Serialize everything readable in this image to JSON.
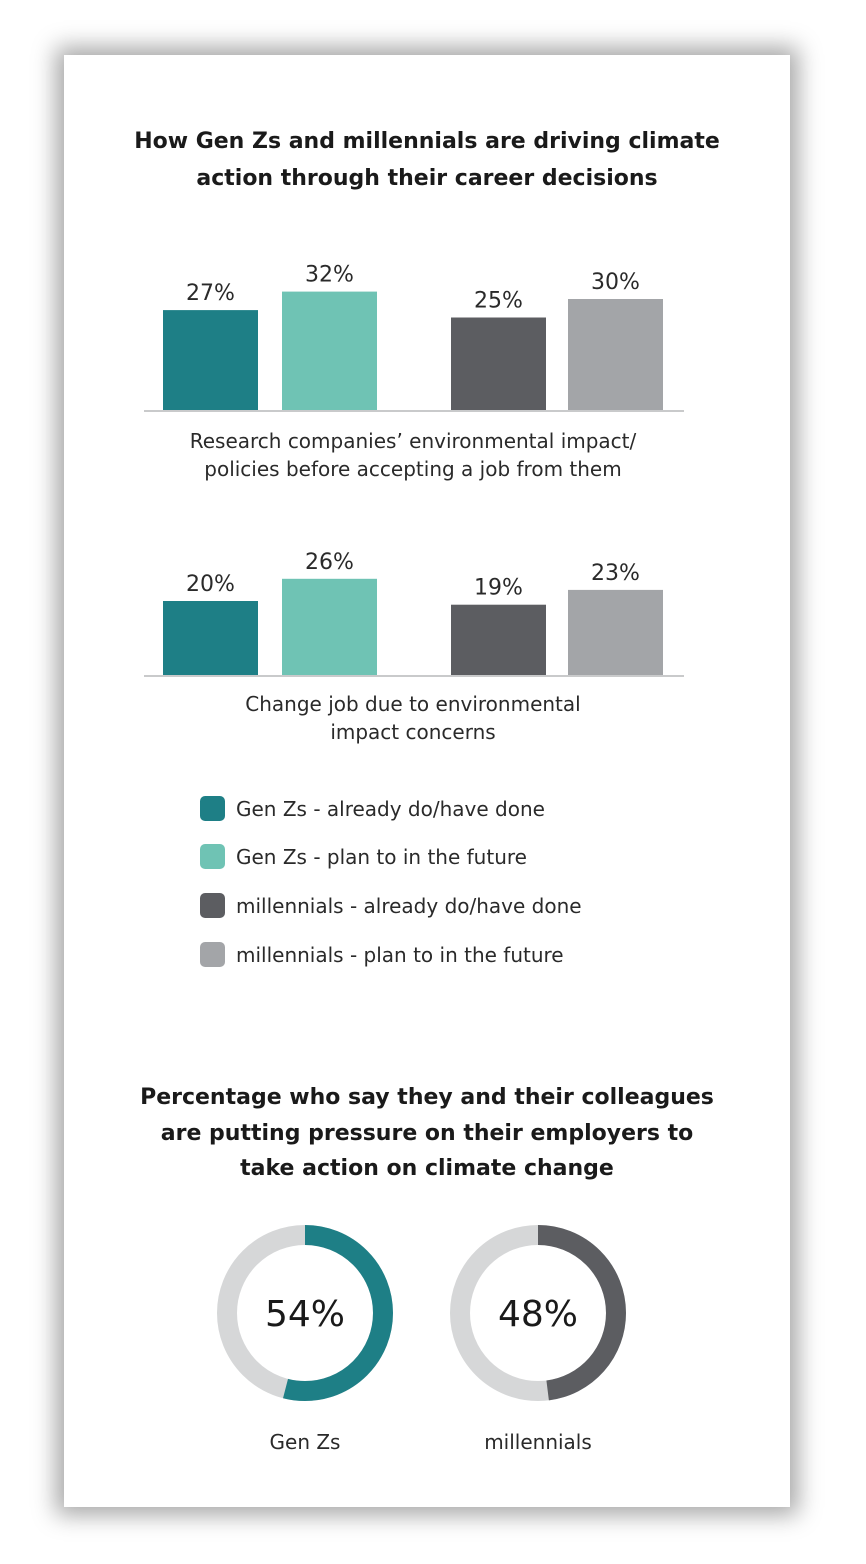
{
  "chart_data": [
    {
      "type": "bar",
      "title_lines": [
        "How Gen Zs and millennials are driving climate",
        "action through their career decisions"
      ],
      "groups": [
        {
          "caption_lines": [
            "Research companies’ environmental impact/",
            "policies before accepting a job from them"
          ],
          "values": [
            27,
            32,
            25,
            30
          ],
          "labels": [
            "27%",
            "32%",
            "25%",
            "30%"
          ]
        },
        {
          "caption_lines": [
            "Change job due to environmental",
            "impact concerns"
          ],
          "values": [
            20,
            26,
            19,
            23
          ],
          "labels": [
            "20%",
            "26%",
            "19%",
            "23%"
          ]
        }
      ],
      "series": [
        {
          "name": "Gen Zs - already do/have done",
          "color": "#1e7f86"
        },
        {
          "name": "Gen Zs - plan to in the future",
          "color": "#6fc3b4"
        },
        {
          "name": "millennials - already do/have done",
          "color": "#5c5d61"
        },
        {
          "name": "millennials - plan to in the future",
          "color": "#a3a5a8"
        }
      ],
      "ylim": [
        0,
        100
      ]
    },
    {
      "type": "pie",
      "title_lines": [
        "Percentage who say they and their colleagues",
        "are putting pressure on their employers to",
        "take action on climate change"
      ],
      "donuts": [
        {
          "label": "Gen Zs",
          "value": 54,
          "value_text": "54%",
          "color": "#1e7f86"
        },
        {
          "label": "millennials",
          "value": 48,
          "value_text": "48%",
          "color": "#5c5d61"
        }
      ],
      "track_color": "#d6d7d8"
    }
  ]
}
